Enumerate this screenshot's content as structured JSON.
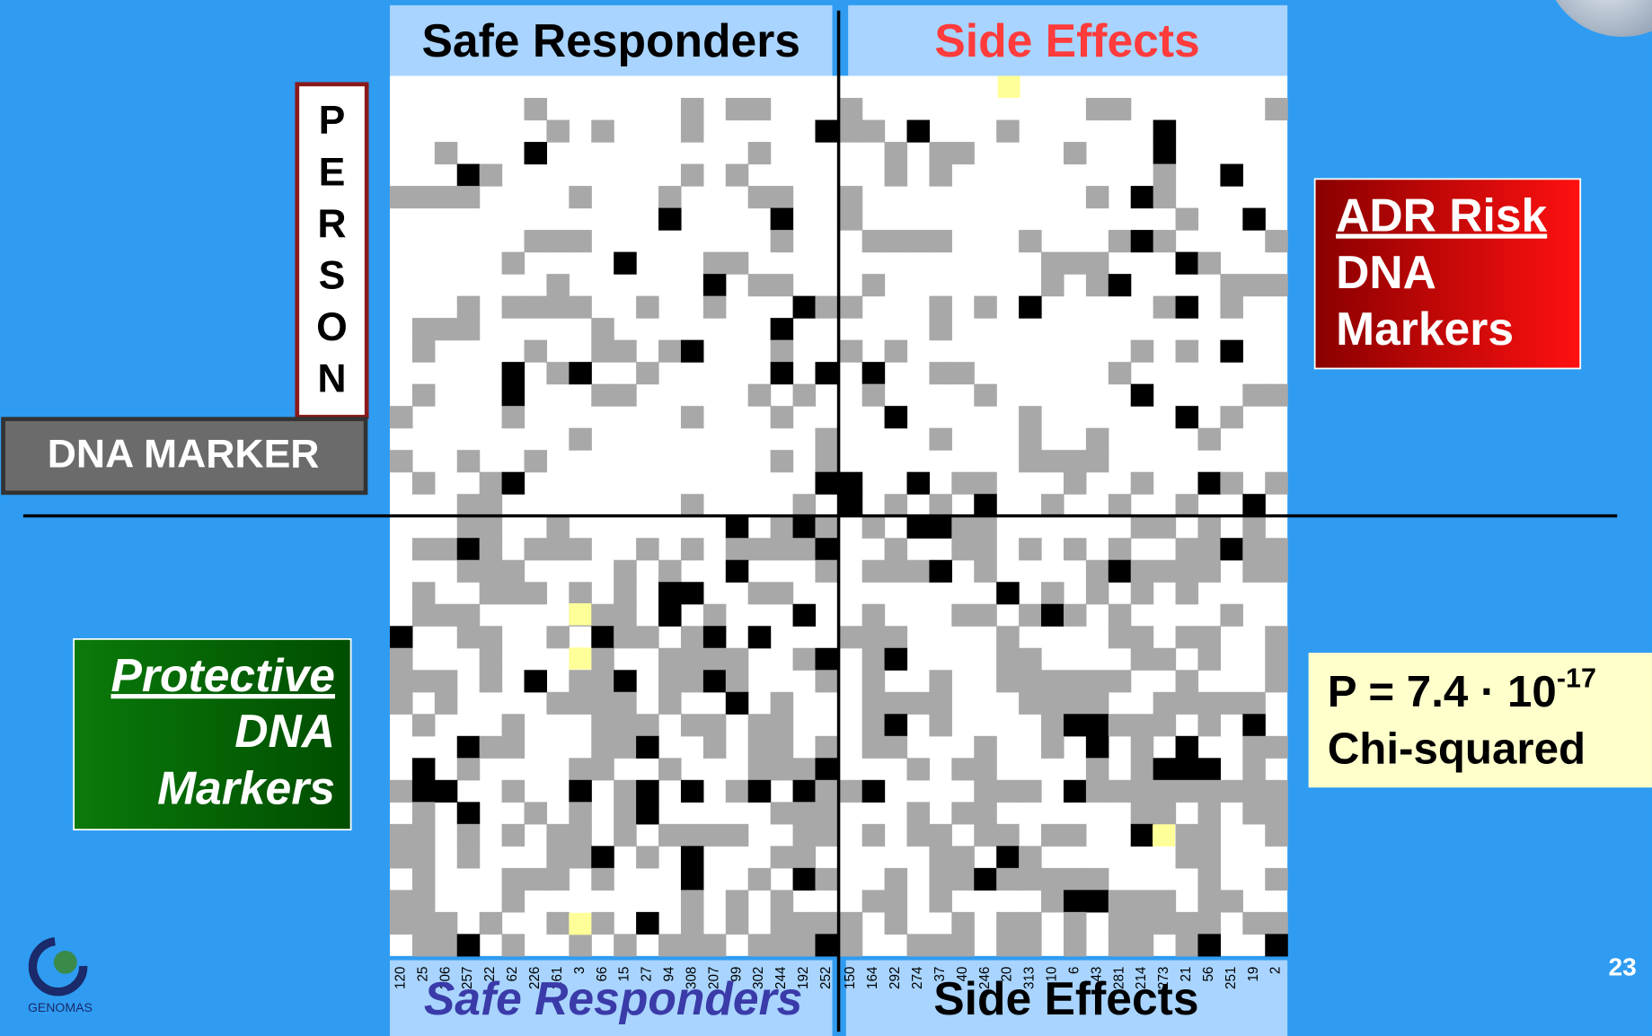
{
  "header": {
    "left": "Safe Responders",
    "right": "Side Effects"
  },
  "person_label": [
    "P",
    "E",
    "R",
    "S",
    "O",
    "N"
  ],
  "dna_marker": "DNA MARKER",
  "adr_box": {
    "title": "ADR Risk",
    "lines": [
      "DNA",
      "Markers"
    ]
  },
  "protective_box": {
    "title": "Protective",
    "lines": [
      "DNA",
      "Markers"
    ]
  },
  "stats": {
    "p_value": "P = 7.4 · 10",
    "exponent": "-17",
    "test": "Chi-squared"
  },
  "footer": {
    "left": "Safe Responders",
    "right": "Side Effects",
    "columns_left": [
      120,
      25,
      306,
      257,
      22,
      62,
      226,
      261,
      3,
      66,
      15,
      27,
      94,
      308,
      207,
      99,
      302,
      244,
      192,
      252
    ],
    "columns_right": [
      150,
      164,
      292,
      274,
      37,
      40,
      246,
      20,
      313,
      10,
      6,
      43,
      281,
      214,
      273,
      21,
      56,
      251,
      19,
      2
    ]
  },
  "page_number": "23",
  "logo": "GENOMAS"
}
